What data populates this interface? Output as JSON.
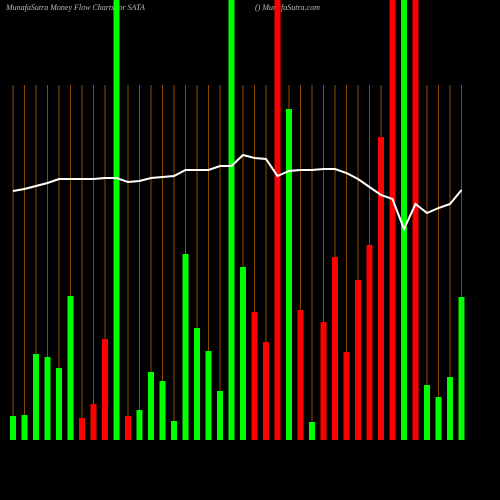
{
  "chart_data": {
    "type": "bar",
    "title": "MunafaSutra  Money Flow  Charts for SATA",
    "subtitle": "() MunafaSutra.com",
    "categories": [
      null,
      null,
      null,
      null,
      null,
      null,
      null,
      null,
      null,
      null,
      null,
      null,
      null,
      null,
      null,
      null,
      null,
      null,
      null,
      null,
      null,
      null,
      null,
      null,
      null,
      null,
      null,
      null,
      null,
      null,
      null,
      null,
      null,
      null,
      null,
      null,
      null,
      null,
      null,
      null
    ],
    "values": [
      24,
      25,
      86,
      83,
      72,
      144,
      22,
      36,
      101,
      440,
      24,
      30,
      68,
      59,
      19,
      186,
      112,
      89,
      49,
      440,
      173,
      128,
      98,
      440,
      331,
      130,
      18,
      118,
      183,
      88,
      160,
      195,
      303,
      440,
      440,
      440,
      55,
      43,
      63,
      143
    ],
    "colors": [
      "#00ff00",
      "#00ff00",
      "#00ff00",
      "#00ff00",
      "#00ff00",
      "#00ff00",
      "#ff0000",
      "#ff0000",
      "#ff0000",
      "#00ff00",
      "#ff0000",
      "#00ff00",
      "#00ff00",
      "#00ff00",
      "#00ff00",
      "#00ff00",
      "#00ff00",
      "#00ff00",
      "#00ff00",
      "#00ff00",
      "#00ff00",
      "#ff0000",
      "#ff0000",
      "#ff0000",
      "#00ff00",
      "#ff0000",
      "#00ff00",
      "#ff0000",
      "#ff0000",
      "#ff0000",
      "#ff0000",
      "#ff0000",
      "#ff0000",
      "#ff0000",
      "#00ff00",
      "#ff0000",
      "#00ff00",
      "#00ff00",
      "#00ff00",
      "#00ff00"
    ],
    "line": {
      "color": "#ffffff",
      "values": [
        249,
        251,
        254,
        257,
        261,
        261,
        261,
        261,
        262,
        262,
        258,
        259,
        262,
        263,
        264,
        270,
        270,
        270,
        274,
        274,
        285,
        282,
        281,
        264,
        269,
        270,
        270,
        271,
        271,
        267,
        261,
        253,
        245,
        241,
        211,
        236,
        227,
        232,
        236,
        250
      ]
    },
    "ylim": [
      0,
      440
    ],
    "guide_color": "#8b4a00"
  }
}
